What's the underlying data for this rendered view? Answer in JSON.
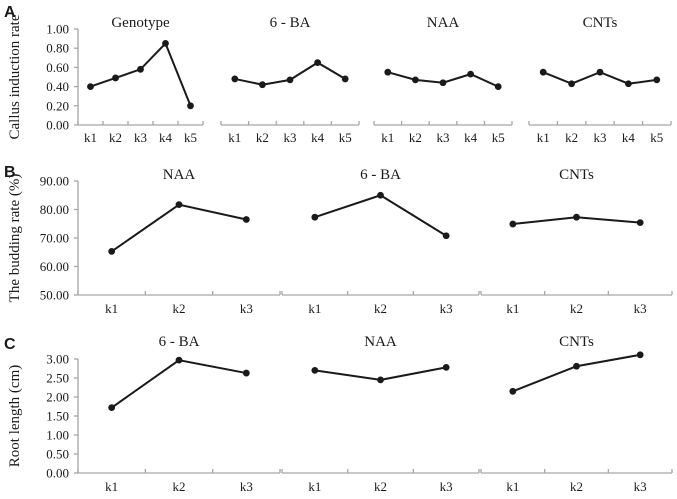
{
  "colors": {
    "data_line": "#1a1a1a",
    "marker": "#1a1a1a",
    "axis": "#a6a6a6",
    "text": "#1a1a1a",
    "background": "#ffffff"
  },
  "chart_data": [
    {
      "type": "line",
      "panel_label": "A",
      "ylabel": "Callus induction rate",
      "ylim": [
        0,
        1
      ],
      "ytick_labels": [
        "1.00",
        "0.80",
        "0.60",
        "0.40",
        "0.20",
        "0.00"
      ],
      "grid": false,
      "legend": "none",
      "charts": [
        {
          "title": "Genotype",
          "categories": [
            "k1",
            "k2",
            "k3",
            "k4",
            "k5"
          ],
          "values": [
            0.4,
            0.49,
            0.58,
            0.85,
            0.2
          ]
        },
        {
          "title": "6 - BA",
          "categories": [
            "k1",
            "k2",
            "k3",
            "k4",
            "k5"
          ],
          "values": [
            0.48,
            0.42,
            0.47,
            0.65,
            0.48
          ]
        },
        {
          "title": "NAA",
          "categories": [
            "k1",
            "k2",
            "k3",
            "k4",
            "k5"
          ],
          "values": [
            0.55,
            0.47,
            0.44,
            0.53,
            0.4
          ]
        },
        {
          "title": "CNTs",
          "categories": [
            "k1",
            "k2",
            "k3",
            "k4",
            "k5"
          ],
          "values": [
            0.55,
            0.43,
            0.55,
            0.43,
            0.47
          ]
        }
      ]
    },
    {
      "type": "line",
      "panel_label": "B",
      "ylabel": "The budding rate (%)",
      "ylim": [
        50,
        90
      ],
      "ytick_labels": [
        "90.00",
        "80.00",
        "70.00",
        "60.00",
        "50.00"
      ],
      "grid": false,
      "legend": "none",
      "charts": [
        {
          "title": "NAA",
          "categories": [
            "k1",
            "k2",
            "k3"
          ],
          "values": [
            65.3,
            81.7,
            76.5
          ]
        },
        {
          "title": "6 - BA",
          "categories": [
            "k1",
            "k2",
            "k3"
          ],
          "values": [
            77.3,
            85.0,
            70.8
          ]
        },
        {
          "title": "CNTs",
          "categories": [
            "k1",
            "k2",
            "k3"
          ],
          "values": [
            74.9,
            77.3,
            75.4
          ]
        }
      ]
    },
    {
      "type": "line",
      "panel_label": "C",
      "ylabel": "Root length (cm)",
      "ylim": [
        0,
        3
      ],
      "ytick_labels": [
        "3.00",
        "2.50",
        "2.00",
        "1.50",
        "1.00",
        "0.50",
        "0.00"
      ],
      "grid": false,
      "legend": "none",
      "charts": [
        {
          "title": "6 - BA",
          "categories": [
            "k1",
            "k2",
            "k3"
          ],
          "values": [
            1.72,
            2.97,
            2.63
          ]
        },
        {
          "title": "NAA",
          "categories": [
            "k1",
            "k2",
            "k3"
          ],
          "values": [
            2.7,
            2.45,
            2.78
          ]
        },
        {
          "title": "CNTs",
          "categories": [
            "k1",
            "k2",
            "k3"
          ],
          "values": [
            2.15,
            2.81,
            3.11
          ]
        }
      ]
    }
  ]
}
